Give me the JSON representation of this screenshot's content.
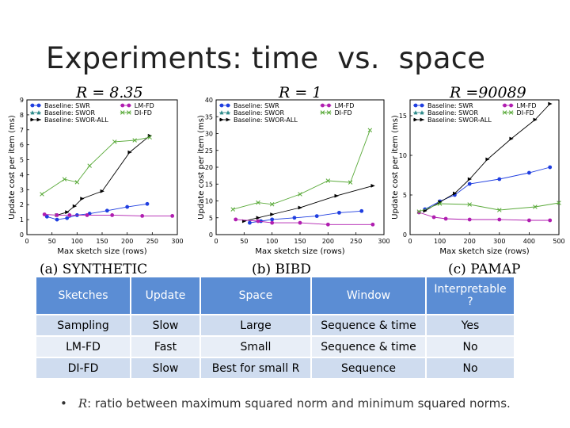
{
  "slide": {
    "title": "Experiments: time  vs.  space",
    "bullet": {
      "symbol": "R",
      "text": ": ratio between maximum squared norm and minimum squared norms."
    }
  },
  "chart_data": [
    {
      "type": "line",
      "title": "R = 8.35",
      "caption": "(a) SYNTHETIC",
      "xlabel": "Max sketch size (rows)",
      "ylabel": "Update cost per item (ms)",
      "xlim": [
        0,
        300
      ],
      "ylim": [
        0,
        9
      ],
      "xticks": [
        0,
        50,
        100,
        150,
        200,
        250,
        300
      ],
      "yticks": [
        0,
        1,
        2,
        3,
        4,
        5,
        6,
        7,
        8,
        9
      ],
      "legend_position": "top",
      "series": [
        {
          "name": "Baseline: SWR",
          "color": "#1f3ee0",
          "marker": "circle",
          "points": [
            [
              40,
              1.2
            ],
            [
              60,
              1.0
            ],
            [
              80,
              1.1
            ],
            [
              100,
              1.3
            ],
            [
              125,
              1.4
            ],
            [
              160,
              1.6
            ],
            [
              200,
              1.85
            ],
            [
              240,
              2.05
            ]
          ]
        },
        {
          "name": "Baseline: SWOR",
          "color": "#2e8b8b",
          "marker": "triangle-up",
          "points": []
        },
        {
          "name": "Baseline: SWOR-ALL",
          "color": "#000000",
          "marker": "triangle-right",
          "points": [
            [
              60,
              1.3
            ],
            [
              80,
              1.5
            ],
            [
              95,
              1.9
            ],
            [
              110,
              2.4
            ],
            [
              150,
              2.9
            ],
            [
              205,
              5.5
            ],
            [
              245,
              6.6
            ]
          ]
        },
        {
          "name": "LM-FD",
          "color": "#b01eb0",
          "marker": "circle",
          "points": [
            [
              35,
              1.35
            ],
            [
              60,
              1.3
            ],
            [
              85,
              1.3
            ],
            [
              120,
              1.3
            ],
            [
              170,
              1.3
            ],
            [
              230,
              1.25
            ],
            [
              290,
              1.25
            ]
          ]
        },
        {
          "name": "DI-FD",
          "color": "#5aaa3a",
          "marker": "x",
          "points": [
            [
              30,
              2.7
            ],
            [
              75,
              3.7
            ],
            [
              100,
              3.5
            ],
            [
              125,
              4.6
            ],
            [
              175,
              6.2
            ],
            [
              215,
              6.3
            ],
            [
              245,
              6.5
            ]
          ]
        }
      ]
    },
    {
      "type": "line",
      "title": "R = 1",
      "caption": "(b) BIBD",
      "xlabel": "Max sketch size (rows)",
      "ylabel": "Update cost per item (ms)",
      "xlim": [
        0,
        300
      ],
      "ylim": [
        0,
        40
      ],
      "xticks": [
        0,
        50,
        100,
        150,
        200,
        250,
        300
      ],
      "yticks": [
        0,
        5,
        10,
        15,
        20,
        25,
        30,
        35,
        40
      ],
      "legend_position": "top",
      "series": [
        {
          "name": "Baseline: SWR",
          "color": "#1f3ee0",
          "marker": "circle",
          "points": [
            [
              60,
              3.5
            ],
            [
              80,
              4.0
            ],
            [
              100,
              4.5
            ],
            [
              140,
              5.0
            ],
            [
              180,
              5.5
            ],
            [
              220,
              6.5
            ],
            [
              260,
              7.0
            ]
          ]
        },
        {
          "name": "Baseline: SWOR",
          "color": "#2e8b8b",
          "marker": "triangle-up",
          "points": []
        },
        {
          "name": "Baseline: SWOR-ALL",
          "color": "#000000",
          "marker": "triangle-right",
          "points": [
            [
              50,
              4.0
            ],
            [
              75,
              5.0
            ],
            [
              100,
              6.0
            ],
            [
              150,
              8.0
            ],
            [
              215,
              11.5
            ],
            [
              280,
              14.5
            ]
          ]
        },
        {
          "name": "LM-FD",
          "color": "#b01eb0",
          "marker": "circle",
          "points": [
            [
              35,
              4.5
            ],
            [
              75,
              4.0
            ],
            [
              100,
              3.5
            ],
            [
              150,
              3.5
            ],
            [
              200,
              3.0
            ],
            [
              280,
              3.0
            ]
          ]
        },
        {
          "name": "DI-FD",
          "color": "#5aaa3a",
          "marker": "x",
          "points": [
            [
              30,
              7.5
            ],
            [
              75,
              9.5
            ],
            [
              100,
              9.0
            ],
            [
              150,
              12.0
            ],
            [
              200,
              16.0
            ],
            [
              240,
              15.5
            ],
            [
              275,
              31.0
            ]
          ]
        }
      ]
    },
    {
      "type": "line",
      "title": "R =90089",
      "caption": "(c) PAMAP",
      "xlabel": "Max sketch size (rows)",
      "ylabel": "Update cost per item (ms)",
      "xlim": [
        0,
        500
      ],
      "ylim": [
        0,
        17
      ],
      "xticks": [
        0,
        100,
        200,
        300,
        400,
        500
      ],
      "yticks": [
        0,
        5,
        10,
        15
      ],
      "legend_position": "top",
      "series": [
        {
          "name": "Baseline: SWR",
          "color": "#1f3ee0",
          "marker": "circle",
          "points": [
            [
              50,
              3.2
            ],
            [
              100,
              4.2
            ],
            [
              150,
              5.0
            ],
            [
              200,
              6.4
            ],
            [
              300,
              7.0
            ],
            [
              400,
              7.8
            ],
            [
              470,
              8.5
            ]
          ]
        },
        {
          "name": "Baseline: SWOR",
          "color": "#2e8b8b",
          "marker": "triangle-up",
          "points": []
        },
        {
          "name": "Baseline: SWOR-ALL",
          "color": "#000000",
          "marker": "triangle-right",
          "points": [
            [
              50,
              3.0
            ],
            [
              100,
              4.1
            ],
            [
              150,
              5.2
            ],
            [
              200,
              7.0
            ],
            [
              260,
              9.5
            ],
            [
              340,
              12.1
            ],
            [
              420,
              14.5
            ],
            [
              470,
              16.5
            ]
          ]
        },
        {
          "name": "LM-FD",
          "color": "#b01eb0",
          "marker": "circle",
          "points": [
            [
              30,
              2.8
            ],
            [
              80,
              2.2
            ],
            [
              120,
              2.0
            ],
            [
              200,
              1.9
            ],
            [
              300,
              1.9
            ],
            [
              400,
              1.8
            ],
            [
              470,
              1.8
            ]
          ]
        },
        {
          "name": "DI-FD",
          "color": "#5aaa3a",
          "marker": "x",
          "points": [
            [
              30,
              2.9
            ],
            [
              100,
              3.9
            ],
            [
              200,
              3.8
            ],
            [
              300,
              3.1
            ],
            [
              420,
              3.5
            ],
            [
              500,
              4.0
            ]
          ]
        }
      ]
    }
  ],
  "table": {
    "headers": [
      "Sketches",
      "Update",
      "Space",
      "Window",
      "Interpretable ?"
    ],
    "rows": [
      [
        "Sampling",
        "Slow",
        "Large",
        "Sequence & time",
        "Yes"
      ],
      [
        "LM-FD",
        "Fast",
        "Small",
        "Sequence & time",
        "No"
      ],
      [
        "DI-FD",
        "Slow",
        "Best for small R",
        "Sequence",
        "No"
      ]
    ]
  }
}
